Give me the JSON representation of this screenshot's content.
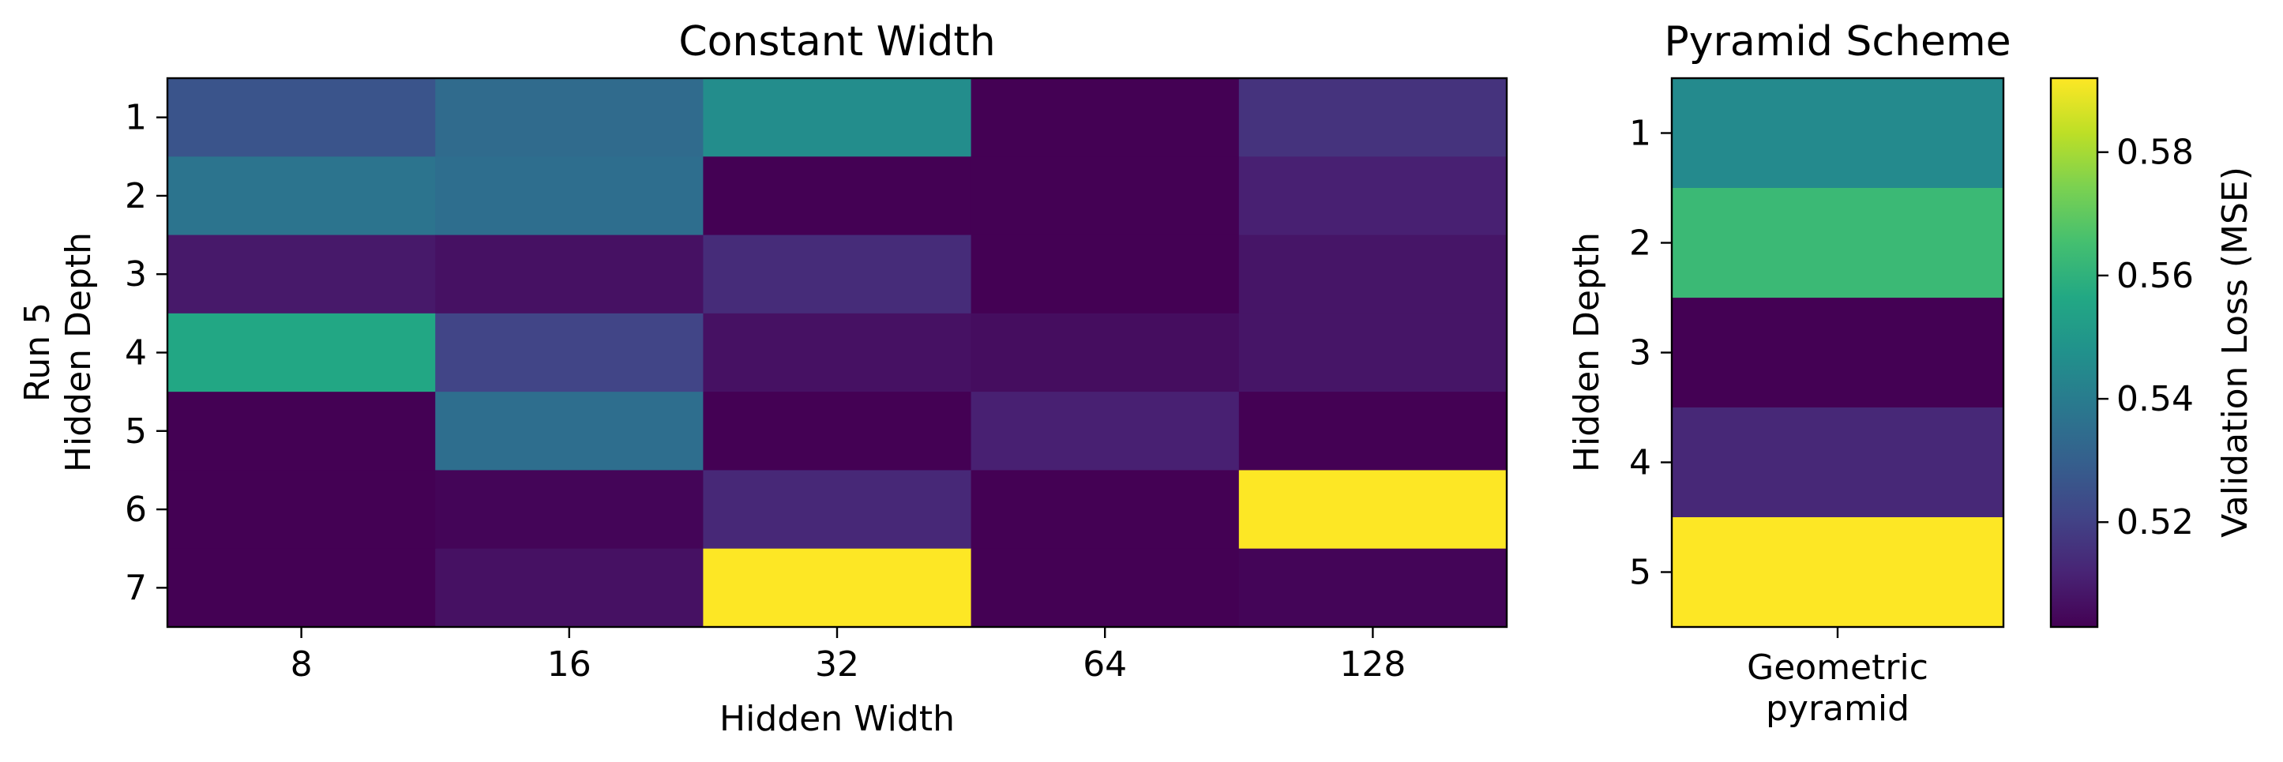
{
  "chart_data": [
    {
      "type": "heatmap",
      "title": "Constant Width",
      "xlabel": "Hidden Width",
      "ylabel_line1": "Run 5",
      "ylabel_line2": "Hidden Depth",
      "x_categories": [
        "8",
        "16",
        "32",
        "64",
        "128"
      ],
      "y_categories": [
        "1",
        "2",
        "3",
        "4",
        "5",
        "6",
        "7"
      ],
      "values": [
        [
          0.526,
          0.534,
          0.546,
          0.503,
          0.516
        ],
        [
          0.537,
          0.535,
          0.503,
          0.503,
          0.511
        ],
        [
          0.509,
          0.507,
          0.514,
          0.503,
          0.508
        ],
        [
          0.556,
          0.521,
          0.507,
          0.506,
          0.508
        ],
        [
          0.503,
          0.535,
          0.503,
          0.511,
          0.503
        ],
        [
          0.503,
          0.504,
          0.513,
          0.503,
          0.592
        ],
        [
          0.503,
          0.507,
          0.592,
          0.503,
          0.504
        ]
      ]
    },
    {
      "type": "heatmap",
      "title": "Pyramid Scheme",
      "ylabel": "Hidden Depth",
      "x_categories": [
        "Geometric\npyramid"
      ],
      "y_categories": [
        "1",
        "2",
        "3",
        "4",
        "5"
      ],
      "values": [
        [
          0.545
        ],
        [
          0.563
        ],
        [
          0.503
        ],
        [
          0.513
        ],
        [
          0.592
        ]
      ]
    }
  ],
  "colorbar": {
    "label": "Validation Loss (MSE)",
    "colormap": "viridis",
    "range": [
      0.503,
      0.592
    ],
    "ticks": [
      0.52,
      0.54,
      0.56,
      0.58
    ],
    "tick_labels": [
      "0.52",
      "0.54",
      "0.56",
      "0.58"
    ]
  }
}
